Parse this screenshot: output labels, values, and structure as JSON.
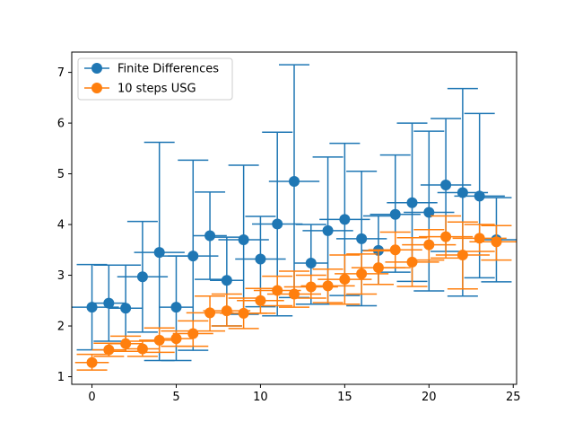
{
  "chart_data": {
    "type": "scatter",
    "title": "",
    "xlabel": "",
    "ylabel": "",
    "xlim": [
      -1.2,
      25.2
    ],
    "ylim": [
      0.85,
      7.4
    ],
    "grid": false,
    "legend_position": "top-left",
    "x_ticks": [
      0,
      5,
      10,
      15,
      20,
      25
    ],
    "y_ticks": [
      1,
      2,
      3,
      4,
      5,
      6,
      7
    ],
    "series": [
      {
        "name": "Finite Differences",
        "color": "#1f77b4",
        "points": [
          {
            "x": 0,
            "y": 2.37,
            "ylo": 1.53,
            "yhi": 3.21,
            "xlo": -1.6,
            "xhi": 1.6
          },
          {
            "x": 1,
            "y": 2.45,
            "ylo": 1.7,
            "yhi": 3.2,
            "xlo": 0.0,
            "xhi": 2.0
          },
          {
            "x": 2,
            "y": 2.35,
            "ylo": 1.5,
            "yhi": 3.2,
            "xlo": 1.0,
            "xhi": 3.0
          },
          {
            "x": 3,
            "y": 2.97,
            "ylo": 1.88,
            "yhi": 4.06,
            "xlo": 1.5,
            "xhi": 4.5
          },
          {
            "x": 4,
            "y": 3.45,
            "ylo": 1.32,
            "yhi": 5.62,
            "xlo": 2.5,
            "xhi": 5.5
          },
          {
            "x": 5,
            "y": 2.37,
            "ylo": 1.32,
            "yhi": 3.38,
            "xlo": 4.0,
            "xhi": 6.0
          },
          {
            "x": 6,
            "y": 3.38,
            "ylo": 1.52,
            "yhi": 5.27,
            "xlo": 4.5,
            "xhi": 7.5
          },
          {
            "x": 7,
            "y": 3.78,
            "ylo": 2.92,
            "yhi": 4.64,
            "xlo": 6.0,
            "xhi": 8.0
          },
          {
            "x": 8,
            "y": 2.9,
            "ylo": 2.0,
            "yhi": 3.75,
            "xlo": 7.0,
            "xhi": 9.0
          },
          {
            "x": 9,
            "y": 3.7,
            "ylo": 2.23,
            "yhi": 5.17,
            "xlo": 7.5,
            "xhi": 10.5
          },
          {
            "x": 10,
            "y": 3.32,
            "ylo": 2.38,
            "yhi": 4.16,
            "xlo": 8.5,
            "xhi": 11.5
          },
          {
            "x": 11,
            "y": 4.01,
            "ylo": 2.2,
            "yhi": 5.82,
            "xlo": 9.5,
            "xhi": 12.5
          },
          {
            "x": 12,
            "y": 4.85,
            "ylo": 2.56,
            "yhi": 7.15,
            "xlo": 10.5,
            "xhi": 13.5
          },
          {
            "x": 13,
            "y": 3.24,
            "ylo": 2.43,
            "yhi": 4.0,
            "xlo": 12.0,
            "xhi": 14.0
          },
          {
            "x": 14,
            "y": 3.88,
            "ylo": 2.43,
            "yhi": 5.33,
            "xlo": 12.5,
            "xhi": 15.5
          },
          {
            "x": 15,
            "y": 4.1,
            "ylo": 2.6,
            "yhi": 5.6,
            "xlo": 13.5,
            "xhi": 16.5
          },
          {
            "x": 16,
            "y": 3.72,
            "ylo": 2.4,
            "yhi": 5.05,
            "xlo": 14.5,
            "xhi": 17.5
          },
          {
            "x": 17,
            "y": 3.49,
            "ylo": 2.82,
            "yhi": 4.17,
            "xlo": 16.0,
            "xhi": 18.0
          },
          {
            "x": 18,
            "y": 4.2,
            "ylo": 3.06,
            "yhi": 5.37,
            "xlo": 16.5,
            "xhi": 19.5
          },
          {
            "x": 19,
            "y": 4.43,
            "ylo": 2.88,
            "yhi": 6.0,
            "xlo": 17.5,
            "xhi": 20.5
          },
          {
            "x": 20,
            "y": 4.24,
            "ylo": 2.69,
            "yhi": 5.84,
            "xlo": 18.5,
            "xhi": 21.5
          },
          {
            "x": 21,
            "y": 4.78,
            "ylo": 3.47,
            "yhi": 6.09,
            "xlo": 19.5,
            "xhi": 22.5
          },
          {
            "x": 22,
            "y": 4.63,
            "ylo": 2.59,
            "yhi": 6.68,
            "xlo": 20.5,
            "xhi": 23.5
          },
          {
            "x": 23,
            "y": 4.56,
            "ylo": 2.95,
            "yhi": 6.19,
            "xlo": 21.5,
            "xhi": 24.5
          },
          {
            "x": 24,
            "y": 3.7,
            "ylo": 2.87,
            "yhi": 4.53,
            "xlo": 23.0,
            "xhi": 25.2
          }
        ]
      },
      {
        "name": "10 steps USG",
        "color": "#ff7f0e",
        "points": [
          {
            "x": 0,
            "y": 1.28,
            "ylo": 1.13,
            "yhi": 1.44,
            "xlo": -1.0,
            "xhi": 1.0
          },
          {
            "x": 1,
            "y": 1.53,
            "ylo": 1.4,
            "yhi": 1.66,
            "xlo": 0.0,
            "xhi": 2.0
          },
          {
            "x": 2,
            "y": 1.65,
            "ylo": 1.5,
            "yhi": 1.8,
            "xlo": 1.0,
            "xhi": 3.0
          },
          {
            "x": 3,
            "y": 1.55,
            "ylo": 1.4,
            "yhi": 1.7,
            "xlo": 2.0,
            "xhi": 4.0
          },
          {
            "x": 4,
            "y": 1.72,
            "ylo": 1.48,
            "yhi": 1.96,
            "xlo": 2.8,
            "xhi": 5.2
          },
          {
            "x": 5,
            "y": 1.75,
            "ylo": 1.6,
            "yhi": 1.9,
            "xlo": 4.0,
            "xhi": 6.0
          },
          {
            "x": 6,
            "y": 1.85,
            "ylo": 1.6,
            "yhi": 2.1,
            "xlo": 4.8,
            "xhi": 7.2
          },
          {
            "x": 7,
            "y": 2.26,
            "ylo": 1.9,
            "yhi": 2.59,
            "xlo": 5.6,
            "xhi": 8.4
          },
          {
            "x": 8,
            "y": 2.3,
            "ylo": 2.0,
            "yhi": 2.63,
            "xlo": 6.6,
            "xhi": 9.4
          },
          {
            "x": 9,
            "y": 2.25,
            "ylo": 1.95,
            "yhi": 2.55,
            "xlo": 7.6,
            "xhi": 10.4
          },
          {
            "x": 10,
            "y": 2.5,
            "ylo": 2.25,
            "yhi": 2.74,
            "xlo": 8.6,
            "xhi": 11.4
          },
          {
            "x": 11,
            "y": 2.7,
            "ylo": 2.4,
            "yhi": 2.98,
            "xlo": 9.6,
            "xhi": 12.4
          },
          {
            "x": 12,
            "y": 2.63,
            "ylo": 2.37,
            "yhi": 3.08,
            "xlo": 10.4,
            "xhi": 13.6
          },
          {
            "x": 13,
            "y": 2.77,
            "ylo": 2.55,
            "yhi": 3.0,
            "xlo": 11.4,
            "xhi": 14.6
          },
          {
            "x": 14,
            "y": 2.79,
            "ylo": 2.46,
            "yhi": 3.12,
            "xlo": 12.4,
            "xhi": 15.6
          },
          {
            "x": 15,
            "y": 2.92,
            "ylo": 2.43,
            "yhi": 3.4,
            "xlo": 13.4,
            "xhi": 16.6
          },
          {
            "x": 16,
            "y": 3.03,
            "ylo": 2.63,
            "yhi": 3.42,
            "xlo": 14.4,
            "xhi": 17.6
          },
          {
            "x": 17,
            "y": 3.15,
            "ylo": 2.82,
            "yhi": 3.48,
            "xlo": 15.4,
            "xhi": 18.6
          },
          {
            "x": 18,
            "y": 3.5,
            "ylo": 3.15,
            "yhi": 3.85,
            "xlo": 16.4,
            "xhi": 19.6
          },
          {
            "x": 19,
            "y": 3.26,
            "ylo": 2.78,
            "yhi": 3.74,
            "xlo": 17.4,
            "xhi": 20.6
          },
          {
            "x": 20,
            "y": 3.6,
            "ylo": 3.3,
            "yhi": 3.9,
            "xlo": 18.4,
            "xhi": 21.6
          },
          {
            "x": 21,
            "y": 3.76,
            "ylo": 3.34,
            "yhi": 4.17,
            "xlo": 19.4,
            "xhi": 22.6
          },
          {
            "x": 22,
            "y": 3.4,
            "ylo": 2.73,
            "yhi": 4.05,
            "xlo": 20.4,
            "xhi": 23.6
          },
          {
            "x": 23,
            "y": 3.73,
            "ylo": 3.47,
            "yhi": 4.0,
            "xlo": 21.4,
            "xhi": 24.6
          },
          {
            "x": 24,
            "y": 3.66,
            "ylo": 3.3,
            "yhi": 3.98,
            "xlo": 22.4,
            "xhi": 25.2
          }
        ]
      }
    ]
  }
}
